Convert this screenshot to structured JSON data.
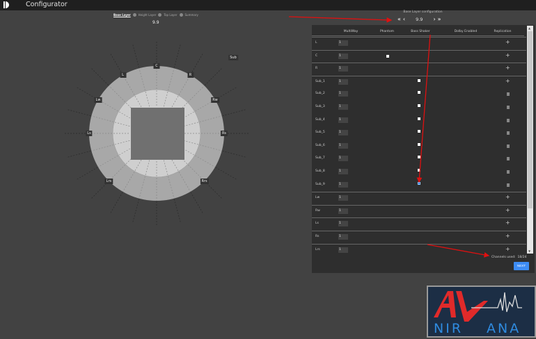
{
  "header": {
    "title": "Configurator",
    "logo_icon": "dolby-d-icon"
  },
  "layer_tabs": [
    {
      "label": "Base Layer",
      "active": true
    },
    {
      "label": "Height Layer"
    },
    {
      "label": "Top Layer"
    },
    {
      "label": "Summary"
    }
  ],
  "layout_name": "9.9",
  "diagram": {
    "speakers": [
      "C",
      "L",
      "R",
      "Lw",
      "Rw",
      "Ls",
      "Rs",
      "Lrs",
      "Rrs"
    ],
    "sub_label": "Sub"
  },
  "config": {
    "title": "Base Layer configuration",
    "value": "9.9",
    "first": "«",
    "prev": "‹",
    "next": "›",
    "last": "»"
  },
  "table": {
    "columns": [
      "MultiWay",
      "Phantom",
      "Bass Shaker",
      "Dolby Enabled",
      "Replication"
    ],
    "rows": [
      {
        "name": "L",
        "multiway": "1",
        "phantom": false,
        "shaker": null,
        "action": "add"
      },
      {
        "name": "C",
        "multiway": "1",
        "phantom": true,
        "shaker": null,
        "action": "add"
      },
      {
        "name": "R",
        "multiway": "1",
        "phantom": false,
        "shaker": null,
        "action": "add"
      },
      {
        "name": "Sub_1",
        "multiway": "1",
        "shaker": false,
        "action": "add"
      },
      {
        "name": "Sub_2",
        "multiway": "1",
        "shaker": false,
        "action": "delete"
      },
      {
        "name": "Sub_3",
        "multiway": "1",
        "shaker": false,
        "action": "delete"
      },
      {
        "name": "Sub_4",
        "multiway": "1",
        "shaker": false,
        "action": "delete"
      },
      {
        "name": "Sub_5",
        "multiway": "1",
        "shaker": false,
        "action": "delete"
      },
      {
        "name": "Sub_6",
        "multiway": "1",
        "shaker": false,
        "action": "delete"
      },
      {
        "name": "Sub_7",
        "multiway": "1",
        "shaker": false,
        "action": "delete"
      },
      {
        "name": "Sub_8",
        "multiway": "1",
        "shaker": false,
        "action": "delete"
      },
      {
        "name": "Sub_9",
        "multiway": "1",
        "shaker": true,
        "action": "delete"
      },
      {
        "name": "Lw",
        "multiway": "1",
        "action": "add"
      },
      {
        "name": "Rw",
        "multiway": "1",
        "action": "add"
      },
      {
        "name": "Ls",
        "multiway": "1",
        "action": "add"
      },
      {
        "name": "Rs",
        "multiway": "1",
        "action": "add"
      },
      {
        "name": "Lrs",
        "multiway": "1",
        "action": "add"
      }
    ]
  },
  "channels_used": {
    "label": "Channels used:",
    "value": "18/24"
  },
  "next_button": "NEXT",
  "watermark": {
    "text": "AV NIRVANA"
  },
  "colors": {
    "accent": "#3d8cf5",
    "annotation": "#e01010",
    "background": "#424242",
    "panel": "#2e2e2e"
  }
}
